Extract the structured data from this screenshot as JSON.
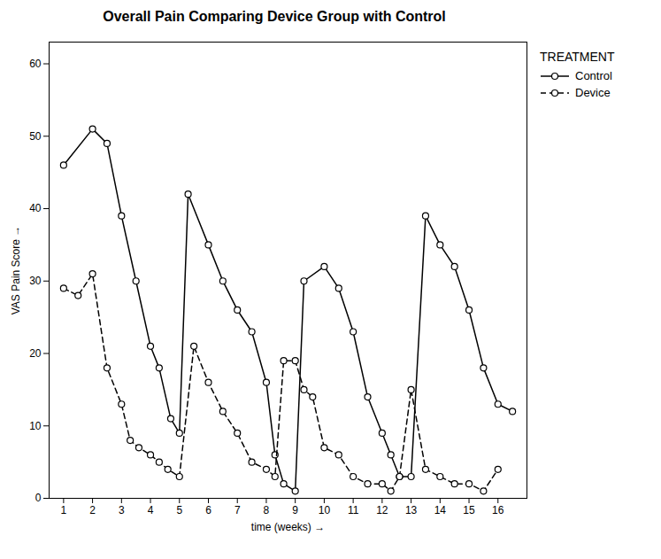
{
  "chart_data": {
    "type": "line",
    "title": "Overall Pain Comparing Device Group with Control",
    "xlabel": "time (weeks)",
    "ylabel": "VAS Pain Score",
    "legend_title": "TREATMENT",
    "legend": "right",
    "xlim": [
      0.5,
      17.0
    ],
    "ylim": [
      0,
      63
    ],
    "xticks": [
      1,
      2,
      3,
      4,
      5,
      6,
      7,
      8,
      9,
      10,
      11,
      12,
      13,
      14,
      15,
      16
    ],
    "yticks": [
      0,
      10,
      20,
      30,
      40,
      50,
      60
    ],
    "grid": false,
    "series": [
      {
        "name": "Control",
        "color": "#000000",
        "line_style": "solid",
        "marker": "circle",
        "x": [
          1,
          2,
          2.5,
          3,
          3.5,
          4,
          4.3,
          4.7,
          5,
          5.3,
          6,
          6.5,
          7,
          7.5,
          8,
          8.3,
          8.6,
          9,
          9.3,
          10,
          10.5,
          11,
          11.5,
          12,
          12.3,
          12.6,
          13,
          13.5,
          14,
          14.5,
          15,
          15.5,
          16,
          16.5
        ],
        "values": [
          46,
          51,
          49,
          39,
          30,
          21,
          18,
          11,
          9,
          42,
          35,
          30,
          26,
          23,
          16,
          6,
          2,
          1,
          30,
          32,
          29,
          23,
          14,
          9,
          6,
          3,
          3,
          39,
          35,
          32,
          26,
          18,
          13,
          12
        ]
      },
      {
        "name": "Device",
        "color": "#000000",
        "line_style": "dashed",
        "marker": "circle",
        "x": [
          1,
          1.5,
          2,
          2.5,
          3,
          3.3,
          3.6,
          4,
          4.3,
          4.6,
          5,
          5.5,
          6,
          6.5,
          7,
          7.5,
          8,
          8.3,
          8.6,
          9,
          9.3,
          9.6,
          10,
          10.5,
          11,
          11.5,
          12,
          12.3,
          12.6,
          13,
          13.5,
          14,
          14.5,
          15,
          15.5,
          16
        ],
        "values": [
          29,
          28,
          31,
          18,
          13,
          8,
          7,
          6,
          5,
          4,
          3,
          21,
          16,
          12,
          9,
          5,
          4,
          3,
          19,
          19,
          15,
          14,
          7,
          6,
          3,
          2,
          2,
          1,
          3,
          15,
          4,
          3,
          2,
          2,
          1,
          4
        ]
      }
    ]
  }
}
